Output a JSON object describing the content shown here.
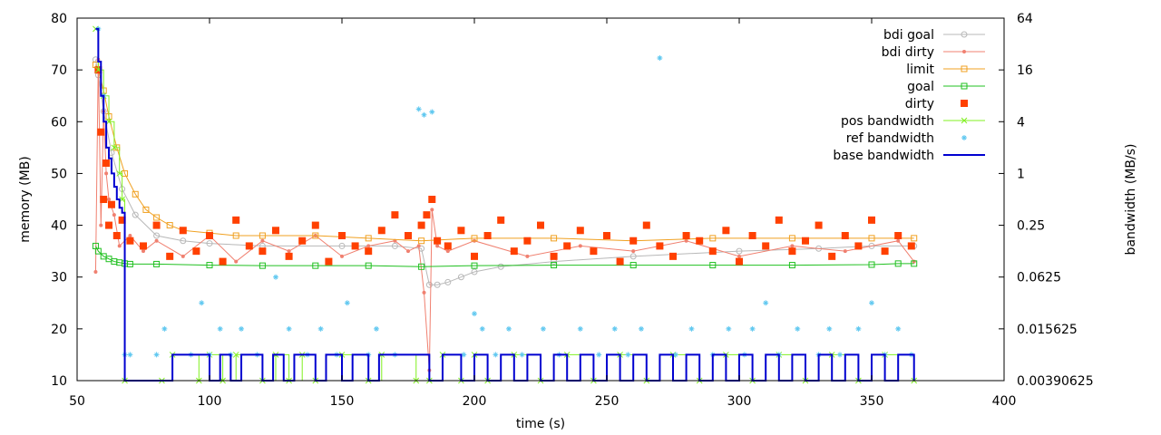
{
  "chart_data": {
    "type": "scatter",
    "title": "",
    "xlabel": "time (s)",
    "ylabel": "memory (MB)",
    "y2label": "bandwidth (MB/s)",
    "xlim": [
      50,
      400
    ],
    "ylim": [
      10,
      80
    ],
    "y2lim": [
      0.00390625,
      64
    ],
    "y2scale": "log2",
    "grid": false,
    "legend_position": "top-right",
    "x_ticks": [
      "50",
      "100",
      "150",
      "200",
      "250",
      "300",
      "350",
      "400"
    ],
    "y_ticks": [
      "10",
      "20",
      "30",
      "40",
      "50",
      "60",
      "70",
      "80"
    ],
    "y2_ticks": [
      "0.00390625",
      "0.015625",
      "0.0625",
      "0.25",
      "1",
      "4",
      "16",
      "64"
    ],
    "x_tick_values": [
      50,
      100,
      150,
      200,
      250,
      300,
      350,
      400
    ],
    "y_tick_values": [
      10,
      20,
      30,
      40,
      50,
      60,
      70,
      80
    ],
    "y2_tick_values": [
      0.00390625,
      0.015625,
      0.0625,
      0.25,
      1,
      4,
      16,
      64
    ],
    "series": [
      {
        "name": "bdi goal",
        "axis": "y",
        "style": "line-circles",
        "color": "#b8b8b8",
        "x": [
          57,
          58,
          60,
          63,
          67,
          72,
          80,
          90,
          100,
          120,
          150,
          170,
          180,
          183,
          186,
          190,
          195,
          200,
          210,
          230,
          260,
          300,
          330,
          350,
          366
        ],
        "y": [
          72,
          69,
          62,
          54,
          47,
          42,
          38,
          37,
          36.5,
          36,
          36,
          36,
          35.5,
          28.5,
          28.5,
          29,
          30,
          31,
          32,
          33,
          34,
          35,
          35.5,
          36,
          36
        ]
      },
      {
        "name": "bdi dirty",
        "axis": "y",
        "style": "line-points",
        "color": "#f08070",
        "x": [
          57,
          58,
          59,
          60,
          61,
          62,
          64,
          66,
          70,
          75,
          80,
          90,
          100,
          110,
          120,
          130,
          140,
          150,
          160,
          170,
          175,
          179,
          181,
          183,
          184,
          186,
          190,
          200,
          220,
          240,
          260,
          280,
          300,
          320,
          340,
          360,
          366
        ],
        "y": [
          31,
          72,
          40,
          62,
          50,
          45,
          42,
          36,
          38,
          35,
          37,
          34,
          38,
          33,
          37,
          35,
          38,
          34,
          36,
          37,
          35,
          36,
          27,
          12,
          43,
          36,
          35,
          37,
          34,
          36,
          35,
          37,
          34,
          36,
          35,
          37,
          33
        ]
      },
      {
        "name": "limit",
        "axis": "y",
        "style": "line-squares",
        "color": "#f0a020",
        "x": [
          57,
          58,
          60,
          62,
          65,
          68,
          72,
          76,
          80,
          85,
          90,
          100,
          110,
          120,
          140,
          160,
          180,
          200,
          230,
          260,
          290,
          320,
          350,
          366
        ],
        "y": [
          71,
          70,
          66,
          61,
          55,
          50,
          46,
          43,
          41.5,
          40,
          39,
          38.5,
          38,
          38,
          38,
          37.5,
          37,
          37.5,
          37.5,
          37,
          37.5,
          37.5,
          37.5,
          37.5
        ]
      },
      {
        "name": "goal",
        "axis": "y",
        "style": "line-squares",
        "color": "#20c020",
        "x": [
          57,
          58,
          60,
          62,
          64,
          66,
          68,
          70,
          80,
          100,
          120,
          140,
          160,
          180,
          200,
          230,
          260,
          290,
          320,
          350,
          360,
          366
        ],
        "y": [
          36,
          35,
          34,
          33.5,
          33,
          32.8,
          32.6,
          32.5,
          32.5,
          32.3,
          32.2,
          32.2,
          32.2,
          32,
          32.2,
          32.3,
          32.3,
          32.3,
          32.3,
          32.4,
          32.6,
          32.6
        ]
      },
      {
        "name": "dirty",
        "axis": "y",
        "style": "points-square",
        "color": "#ff4000",
        "x": [
          58,
          59,
          60,
          61,
          62,
          63,
          65,
          67,
          70,
          75,
          80,
          85,
          90,
          95,
          100,
          105,
          110,
          115,
          120,
          125,
          130,
          135,
          140,
          145,
          150,
          155,
          160,
          165,
          170,
          175,
          180,
          182,
          184,
          186,
          190,
          195,
          200,
          205,
          210,
          215,
          220,
          225,
          230,
          235,
          240,
          245,
          250,
          255,
          260,
          265,
          270,
          275,
          280,
          285,
          290,
          295,
          300,
          305,
          310,
          315,
          320,
          325,
          330,
          335,
          340,
          345,
          350,
          355,
          360,
          365
        ],
        "y": [
          70,
          58,
          45,
          52,
          40,
          44,
          38,
          41,
          37,
          36,
          40,
          34,
          39,
          35,
          38,
          33,
          41,
          36,
          35,
          39,
          34,
          37,
          40,
          33,
          38,
          36,
          35,
          39,
          42,
          38,
          40,
          42,
          45,
          37,
          36,
          39,
          34,
          38,
          41,
          35,
          37,
          40,
          34,
          36,
          39,
          35,
          38,
          33,
          37,
          40,
          36,
          34,
          38,
          37,
          35,
          39,
          33,
          38,
          36,
          41,
          35,
          37,
          40,
          34,
          38,
          36,
          41,
          35,
          38,
          36
        ]
      },
      {
        "name": "pos bandwidth",
        "axis": "y2",
        "style": "step-x",
        "color": "#80f020",
        "x": [
          57,
          58,
          60,
          62,
          64,
          66,
          67,
          68,
          82,
          86,
          96,
          100,
          105,
          110,
          120,
          125,
          130,
          135,
          140,
          150,
          160,
          165,
          178,
          183,
          188,
          195,
          200,
          205,
          215,
          225,
          235,
          245,
          255,
          265,
          275,
          285,
          295,
          305,
          315,
          325,
          335,
          345,
          355,
          366
        ],
        "y": [
          48,
          16,
          8,
          4,
          2,
          1,
          0.5,
          0.00390625,
          0.00390625,
          0.0078125,
          0.00390625,
          0.0078125,
          0.00390625,
          0.0078125,
          0.00390625,
          0.0078125,
          0.00390625,
          0.0078125,
          0.00390625,
          0.0078125,
          0.00390625,
          0.0078125,
          0.00390625,
          0.00390625,
          0.0078125,
          0.00390625,
          0.0078125,
          0.00390625,
          0.0078125,
          0.00390625,
          0.0078125,
          0.00390625,
          0.0078125,
          0.00390625,
          0.0078125,
          0.00390625,
          0.0078125,
          0.00390625,
          0.0078125,
          0.00390625,
          0.0078125,
          0.00390625,
          0.0078125,
          0.00390625
        ]
      },
      {
        "name": "ref bandwidth",
        "axis": "y2",
        "style": "points-star",
        "color": "#60c8f0",
        "x": [
          58,
          60,
          68,
          70,
          80,
          83,
          93,
          97,
          100,
          104,
          108,
          112,
          118,
          125,
          130,
          137,
          142,
          148,
          152,
          160,
          163,
          170,
          179,
          181,
          184,
          196,
          200,
          203,
          208,
          213,
          218,
          226,
          232,
          240,
          247,
          253,
          258,
          263,
          270,
          276,
          282,
          290,
          296,
          302,
          305,
          310,
          315,
          322,
          330,
          334,
          338,
          345,
          350,
          355,
          360,
          365
        ],
        "y": [
          48,
          8,
          0.0078125,
          0.0078125,
          0.0078125,
          0.015625,
          0.0078125,
          0.03125,
          0.0078125,
          0.015625,
          0.0078125,
          0.015625,
          0.0078125,
          0.0625,
          0.015625,
          0.0078125,
          0.015625,
          0.0078125,
          0.03125,
          0.0078125,
          0.015625,
          0.0078125,
          5.6,
          4.8,
          5.2,
          0.0078125,
          0.0234375,
          0.015625,
          0.0078125,
          0.015625,
          0.0078125,
          0.015625,
          0.0078125,
          0.015625,
          0.0078125,
          0.015625,
          0.0078125,
          0.015625,
          22,
          0.0078125,
          0.015625,
          0.0078125,
          0.015625,
          0.0078125,
          0.015625,
          0.03125,
          0.0078125,
          0.015625,
          0.0078125,
          0.015625,
          0.0078125,
          0.015625,
          0.03125,
          0.0078125,
          0.015625,
          0.0078125
        ]
      },
      {
        "name": "base bandwidth",
        "axis": "y2",
        "style": "step-line",
        "color": "#0000d0",
        "x": [
          57,
          58,
          59,
          60,
          61,
          62,
          63,
          64,
          65,
          66,
          67,
          68,
          82,
          86,
          100,
          104,
          108,
          112,
          120,
          124,
          128,
          132,
          140,
          144,
          150,
          154,
          160,
          164,
          183,
          188,
          195,
          200,
          205,
          210,
          215,
          220,
          225,
          230,
          235,
          240,
          245,
          250,
          255,
          260,
          265,
          270,
          275,
          280,
          285,
          290,
          295,
          300,
          305,
          310,
          315,
          320,
          325,
          330,
          335,
          340,
          345,
          350,
          355,
          360,
          366
        ],
        "y": [
          48,
          20,
          8,
          4,
          2,
          1.5,
          1,
          0.7,
          0.5,
          0.4,
          0.35,
          0.00390625,
          0.00390625,
          0.0078125,
          0.00390625,
          0.0078125,
          0.00390625,
          0.0078125,
          0.00390625,
          0.0078125,
          0.00390625,
          0.0078125,
          0.00390625,
          0.0078125,
          0.00390625,
          0.0078125,
          0.00390625,
          0.0078125,
          0.00390625,
          0.0078125,
          0.00390625,
          0.0078125,
          0.00390625,
          0.0078125,
          0.00390625,
          0.0078125,
          0.00390625,
          0.0078125,
          0.00390625,
          0.0078125,
          0.00390625,
          0.0078125,
          0.00390625,
          0.0078125,
          0.00390625,
          0.0078125,
          0.00390625,
          0.0078125,
          0.00390625,
          0.0078125,
          0.00390625,
          0.0078125,
          0.00390625,
          0.0078125,
          0.00390625,
          0.0078125,
          0.00390625,
          0.0078125,
          0.00390625,
          0.0078125,
          0.00390625,
          0.0078125,
          0.00390625,
          0.0078125,
          0.00390625
        ]
      }
    ]
  }
}
